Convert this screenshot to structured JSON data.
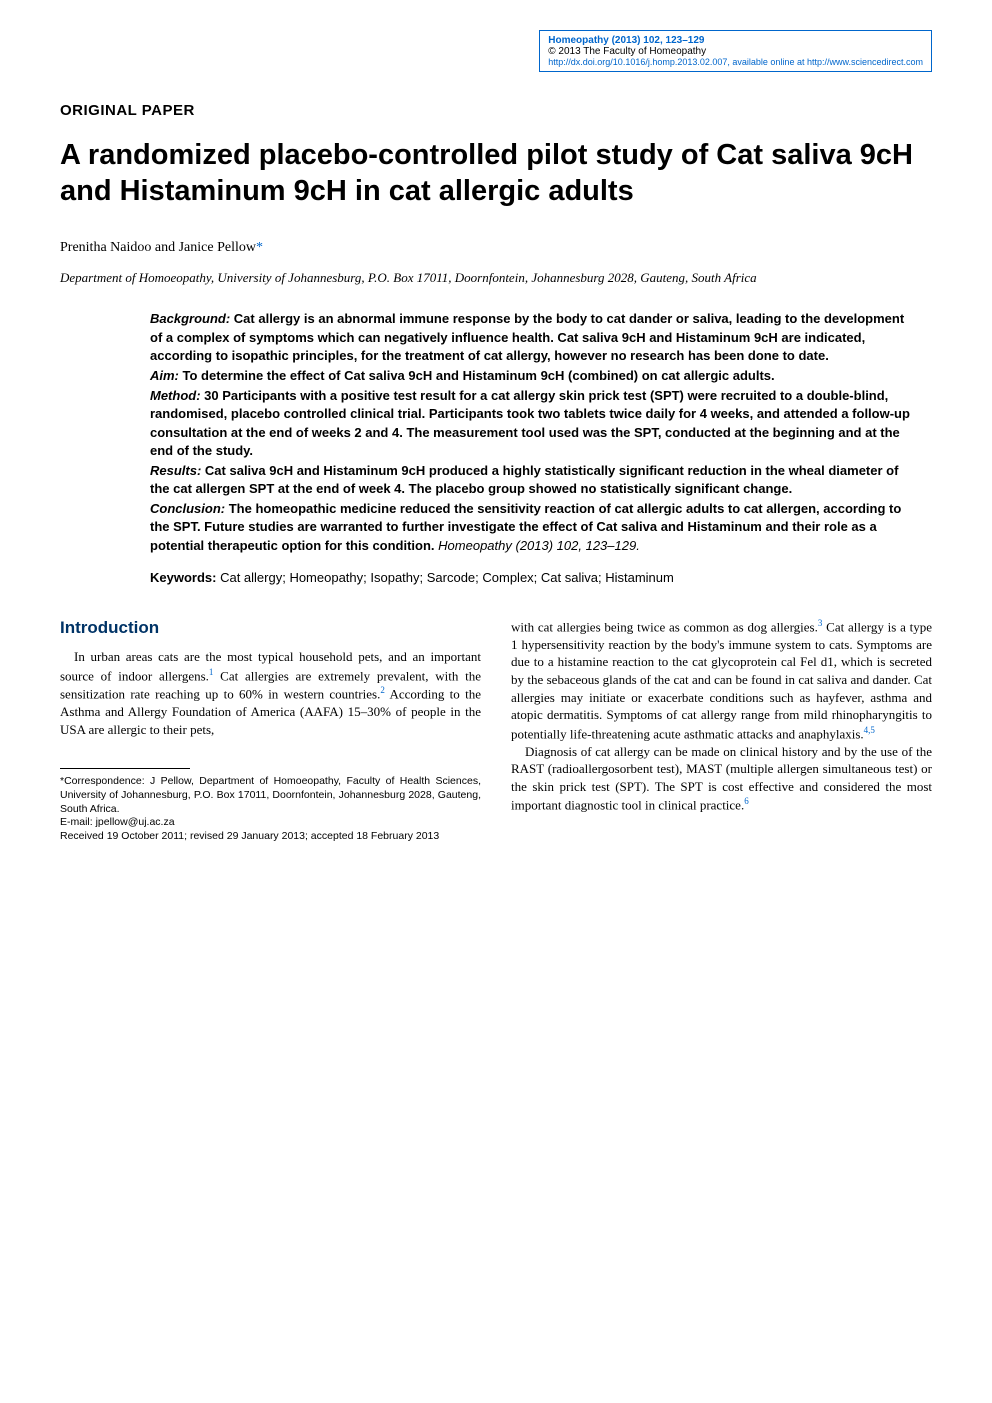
{
  "header": {
    "journal_line": "Homeopathy (2013) 102, 123–129",
    "copyright": "© 2013 The Faculty of Homeopathy",
    "doi_line": "http://dx.doi.org/10.1016/j.homp.2013.02.007, available online at http://www.sciencedirect.com"
  },
  "paper_type": "ORIGINAL PAPER",
  "title": "A randomized placebo-controlled pilot study of Cat saliva 9cH and Histaminum 9cH in cat allergic adults",
  "authors": "Prenitha Naidoo and Janice Pellow",
  "author_mark": "*",
  "affiliation": "Department of Homoeopathy, University of Johannesburg, P.O. Box 17011, Doornfontein, Johannesburg 2028, Gauteng, South Africa",
  "abstract": {
    "background_label": "Background:",
    "background": "Cat allergy is an abnormal immune response by the body to cat dander or saliva, leading to the development of a complex of symptoms which can negatively influence health. Cat saliva 9cH and Histaminum 9cH are indicated, according to isopathic principles, for the treatment of cat allergy, however no research has been done to date.",
    "aim_label": "Aim:",
    "aim": "To determine the effect of Cat saliva 9cH and Histaminum 9cH (combined) on cat allergic adults.",
    "method_label": "Method:",
    "method": "30 Participants with a positive test result for a cat allergy skin prick test (SPT) were recruited to a double-blind, randomised, placebo controlled clinical trial. Participants took two tablets twice daily for 4 weeks, and attended a follow-up consultation at the end of weeks 2 and 4. The measurement tool used was the SPT, conducted at the beginning and at the end of the study.",
    "results_label": "Results:",
    "results": "Cat saliva 9cH and Histaminum 9cH produced a highly statistically significant reduction in the wheal diameter of the cat allergen SPT at the end of week 4. The placebo group showed no statistically significant change.",
    "conclusion_label": "Conclusion:",
    "conclusion": "The homeopathic medicine reduced the sensitivity reaction of cat allergic adults to cat allergen, according to the SPT. Future studies are warranted to further investigate the effect of Cat saliva and Histaminum and their role as a potential therapeutic option for this condition.",
    "citation": "Homeopathy (2013) 102, 123–129."
  },
  "keywords_label": "Keywords:",
  "keywords": " Cat allergy; Homeopathy; Isopathy; Sarcode; Complex; Cat saliva; Histaminum",
  "intro_heading": "Introduction",
  "intro_para1a": "In urban areas cats are the most typical household pets, and an important source of indoor allergens.",
  "intro_para1b": " Cat allergies are extremely prevalent, with the sensitization rate reaching up to 60% in western countries.",
  "intro_para1c": " According to the Asthma and Allergy Foundation of America (AAFA) 15–30% of people in the USA are allergic to their pets,",
  "intro_para2a": "with cat allergies being twice as common as dog allergies.",
  "intro_para2b": " Cat allergy is a type 1 hypersensitivity reaction by the body's immune system to cats. Symptoms are due to a histamine reaction to the cat glycoprotein cal Fel d1, which is secreted by the sebaceous glands of the cat and can be found in cat saliva and dander. Cat allergies may initiate or exacerbate conditions such as hayfever, asthma and atopic dermatitis. Symptoms of cat allergy range from mild rhinopharyngitis to potentially life-threatening acute asthmatic attacks and anaphylaxis.",
  "intro_para3a": "Diagnosis of cat allergy can be made on clinical history and by the use of the RAST (radioallergosorbent test), MAST (multiple allergen simultaneous test) or the skin prick test (SPT). The SPT is cost effective and considered the most important diagnostic tool in clinical practice.",
  "footnote": {
    "correspondence": "*Correspondence: J Pellow, Department of Homoeopathy, Faculty of Health Sciences, University of Johannesburg, P.O. Box 17011, Doornfontein, Johannesburg 2028, Gauteng, South Africa.",
    "email_label": "E-mail: ",
    "email": "jpellow@uj.ac.za",
    "dates": "Received 19 October 2011; revised 29 January 2013; accepted 18 February 2013"
  },
  "refs": {
    "r1": "1",
    "r2": "2",
    "r3": "3",
    "r45": "4,5",
    "r6": "6"
  },
  "colors": {
    "link_blue": "#0066cc",
    "heading_blue": "#003366",
    "text": "#000000",
    "background": "#ffffff"
  }
}
